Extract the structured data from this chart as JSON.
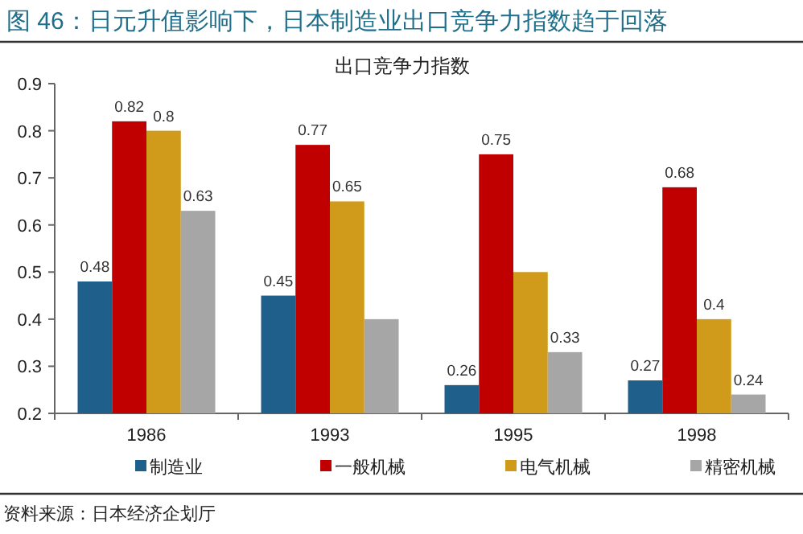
{
  "chart_data": {
    "type": "bar",
    "title": "图 46：日元升值影响下，日本制造业出口竞争力指数趋于回落",
    "subtitle": "出口竞争力指数",
    "categories": [
      "1986",
      "1993",
      "1995",
      "1998"
    ],
    "series": [
      {
        "name": "制造业",
        "color": "#1f5f8b",
        "values": [
          0.48,
          0.45,
          0.26,
          0.27
        ],
        "value_labels": [
          "0.48",
          "0.45",
          "0.26",
          "0.27"
        ]
      },
      {
        "name": "一般机械",
        "color": "#c00000",
        "values": [
          0.82,
          0.77,
          0.75,
          0.68
        ],
        "value_labels": [
          "0.82",
          "0.77",
          "0.75",
          "0.68"
        ]
      },
      {
        "name": "电气机械",
        "color": "#d09a1a",
        "values": [
          0.8,
          0.65,
          0.5,
          0.4
        ],
        "value_labels": [
          "0.8",
          "0.65",
          null,
          "0.4"
        ]
      },
      {
        "name": "精密机械",
        "color": "#a6a6a6",
        "values": [
          0.63,
          0.4,
          0.33,
          0.24
        ],
        "value_labels": [
          "0.63",
          null,
          "0.33",
          "0.24"
        ]
      }
    ],
    "ylim": [
      0.2,
      0.9
    ],
    "yticks": [
      {
        "value": 0.2,
        "label": "0.2"
      },
      {
        "value": 0.3,
        "label": "0.3"
      },
      {
        "value": 0.4,
        "label": "0.4"
      },
      {
        "value": 0.5,
        "label": "0.5"
      },
      {
        "value": 0.6,
        "label": "0.6"
      },
      {
        "value": 0.7,
        "label": "0.7"
      },
      {
        "value": 0.8,
        "label": "0.8"
      },
      {
        "value": 0.9,
        "label": "0.9"
      }
    ],
    "legend": "bottom",
    "grid": false,
    "annotations": [
      "资料来源：日本经济企划厅"
    ]
  }
}
